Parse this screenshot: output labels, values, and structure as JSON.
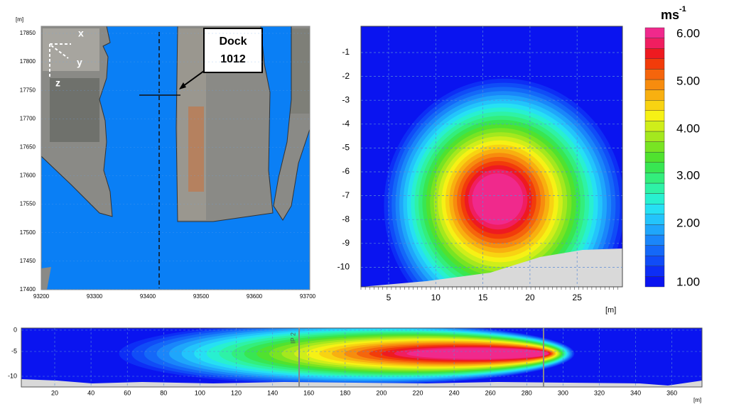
{
  "map": {
    "unit": "[m]",
    "y_ticks": [
      "17850",
      "17800",
      "17750",
      "17700",
      "17650",
      "17600",
      "17550",
      "17500",
      "17450",
      "17400"
    ],
    "x_ticks": [
      "93200",
      "93300",
      "93400",
      "93500",
      "93600",
      "93700"
    ],
    "axes": [
      "x",
      "y",
      "z"
    ],
    "callout": [
      "Dock",
      "1012"
    ]
  },
  "section": {
    "unit": "[m]",
    "y_ticks": [
      "-1",
      "-2",
      "-3",
      "-4",
      "-5",
      "-6",
      "-7",
      "-8",
      "-9",
      "-10"
    ],
    "x_ticks": [
      "5",
      "10",
      "15",
      "20",
      "25"
    ]
  },
  "colorbar": {
    "unit": "ms",
    "exponent": "-1",
    "labels": [
      "6.00",
      "5.00",
      "4.00",
      "3.00",
      "2.00",
      "1.00"
    ]
  },
  "profile": {
    "unit": "[m]",
    "marker": "IP 2",
    "y_ticks": [
      "0",
      "-5",
      "-10"
    ],
    "x_ticks": [
      "20",
      "40",
      "60",
      "80",
      "100",
      "120",
      "140",
      "160",
      "180",
      "200",
      "220",
      "240",
      "260",
      "280",
      "300",
      "320",
      "340",
      "360"
    ]
  }
}
